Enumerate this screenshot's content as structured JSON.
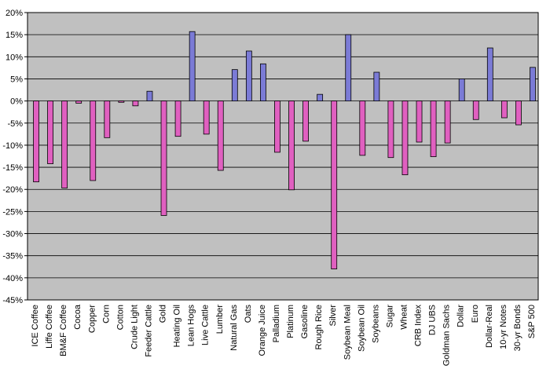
{
  "chart_data": {
    "type": "bar",
    "title": "",
    "xlabel": "",
    "ylabel": "",
    "ylim": [
      -45,
      20
    ],
    "y_ticks": [
      "20%",
      "15%",
      "10%",
      "5%",
      "0%",
      "-5%",
      "-10%",
      "-15%",
      "-20%",
      "-25%",
      "-30%",
      "-35%",
      "-40%",
      "-45%"
    ],
    "grid": true,
    "legend": "none",
    "categories": [
      "ICE Coffee",
      "Liffe Coffee",
      "BM&F Coffee",
      "Cocoa",
      "Copper",
      "Corn",
      "Cotton",
      "Crude Light",
      "Feeder Cattle",
      "Gold",
      "Heating Oil",
      "Lean Hogs",
      "Live Cattle",
      "Lumber",
      "Natural Gas",
      "Oats",
      "Orange Juice",
      "Palladium",
      "Platinum",
      "Gasoline",
      "Rough Rice",
      "Silver",
      "Soybean Meal",
      "Soybean Oil",
      "Soybeans",
      "Sugar",
      "Wheat",
      "CRB Index",
      "DJ UBS",
      "Goldman Sachs",
      "Dollar",
      "Euro",
      "Dollar-Real",
      "10-yr Notes",
      "30-yr Bonds",
      "S&P 500"
    ],
    "values": [
      -18.3,
      -14.2,
      -19.7,
      -0.5,
      -18.0,
      -8.3,
      -0.3,
      -1.1,
      2.2,
      -25.9,
      -8.0,
      15.7,
      -7.5,
      -15.7,
      7.1,
      11.3,
      8.4,
      -11.6,
      -20.1,
      -9.1,
      1.5,
      -38.0,
      15.0,
      -12.3,
      6.5,
      -12.8,
      -16.7,
      -9.3,
      -12.6,
      -9.5,
      5.0,
      -4.2,
      12.0,
      -3.8,
      -5.4,
      7.6
    ],
    "colors": {
      "positive": "#7b7bd6",
      "negative": "#e060c0",
      "plot_bg": "#c0c0c0",
      "grid": "#000000"
    }
  }
}
